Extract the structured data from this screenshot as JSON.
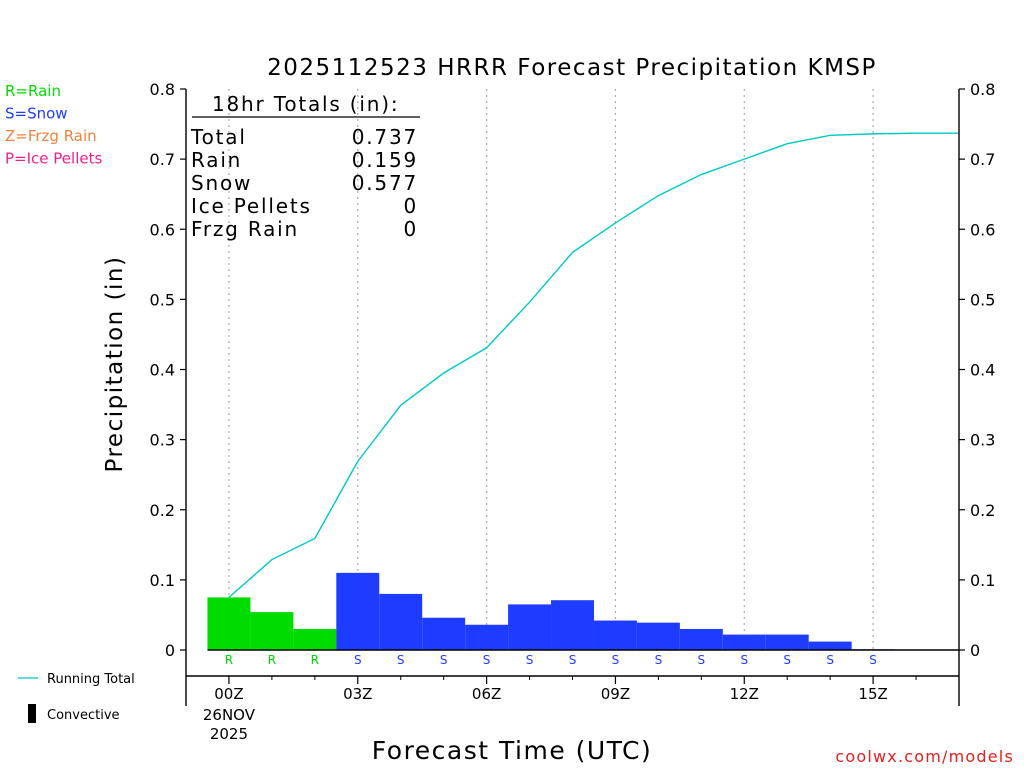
{
  "chart_data": {
    "type": "bar",
    "title": "2025112523 HRRR Forecast Precipitation KMSP",
    "xlabel": "Forecast Time (UTC)",
    "ylabel": "Precipitation (in)",
    "ylim": [
      0,
      0.8
    ],
    "xlim": [
      -1,
      17
    ],
    "y_ticks": [
      "0",
      "0.1",
      "0.2",
      "0.3",
      "0.4",
      "0.5",
      "0.6",
      "0.7",
      "0.8"
    ],
    "x_ticks": [
      {
        "hour": 0,
        "label": "00Z",
        "sub1": "26NOV",
        "sub2": "2025"
      },
      {
        "hour": 3,
        "label": "03Z"
      },
      {
        "hour": 6,
        "label": "06Z"
      },
      {
        "hour": 9,
        "label": "09Z"
      },
      {
        "hour": 12,
        "label": "12Z"
      },
      {
        "hour": 15,
        "label": "15Z"
      }
    ],
    "grid": "dotted vertical at major ticks",
    "bars": [
      {
        "hour": 0,
        "value": 0.075,
        "type": "R"
      },
      {
        "hour": 1,
        "value": 0.054,
        "type": "R"
      },
      {
        "hour": 2,
        "value": 0.03,
        "type": "R"
      },
      {
        "hour": 3,
        "value": 0.11,
        "type": "S"
      },
      {
        "hour": 4,
        "value": 0.08,
        "type": "S"
      },
      {
        "hour": 5,
        "value": 0.046,
        "type": "S"
      },
      {
        "hour": 6,
        "value": 0.036,
        "type": "S"
      },
      {
        "hour": 7,
        "value": 0.065,
        "type": "S"
      },
      {
        "hour": 8,
        "value": 0.071,
        "type": "S"
      },
      {
        "hour": 9,
        "value": 0.042,
        "type": "S"
      },
      {
        "hour": 10,
        "value": 0.039,
        "type": "S"
      },
      {
        "hour": 11,
        "value": 0.03,
        "type": "S"
      },
      {
        "hour": 12,
        "value": 0.022,
        "type": "S"
      },
      {
        "hour": 13,
        "value": 0.022,
        "type": "S"
      },
      {
        "hour": 14,
        "value": 0.012,
        "type": "S"
      },
      {
        "hour": 15,
        "value": 0.001,
        "type": "S"
      }
    ],
    "running_total": {
      "name": "Running Total",
      "x": [
        0,
        1,
        2,
        3,
        4,
        5,
        6,
        7,
        8,
        9,
        10,
        11,
        12,
        13,
        14,
        15,
        16,
        17
      ],
      "y": [
        0.075,
        0.129,
        0.159,
        0.269,
        0.349,
        0.395,
        0.431,
        0.496,
        0.567,
        0.609,
        0.648,
        0.678,
        0.7,
        0.722,
        0.734,
        0.736,
        0.737,
        0.737
      ]
    },
    "legend": [
      {
        "label": "R=Rain",
        "color": "#00dc00"
      },
      {
        "label": "S=Snow",
        "color": "#1e3cff"
      },
      {
        "label": "Z=Frzg Rain",
        "color": "#f0823c"
      },
      {
        "label": "P=Ice Pellets",
        "color": "#f01e8c"
      }
    ],
    "bottom_legend": [
      {
        "label": "Running Total",
        "color": "#00c8c8"
      },
      {
        "label": "Convective",
        "color": "#000000"
      }
    ],
    "totals": {
      "header": "18hr Totals (in):",
      "rows": [
        {
          "label": "Total",
          "value": "0.737"
        },
        {
          "label": "Rain",
          "value": "0.159"
        },
        {
          "label": "Snow",
          "value": "0.577"
        },
        {
          "label": "Ice Pellets",
          "value": "0"
        },
        {
          "label": "Frzg Rain",
          "value": "0"
        }
      ]
    },
    "colors": {
      "rain": "#00dc00",
      "snow": "#1e3cff",
      "frzg": "#f0823c",
      "ice": "#f01e8c",
      "running": "#00c8c8",
      "credit": "#e61e1e"
    },
    "credit": "coolwx.com/models"
  }
}
